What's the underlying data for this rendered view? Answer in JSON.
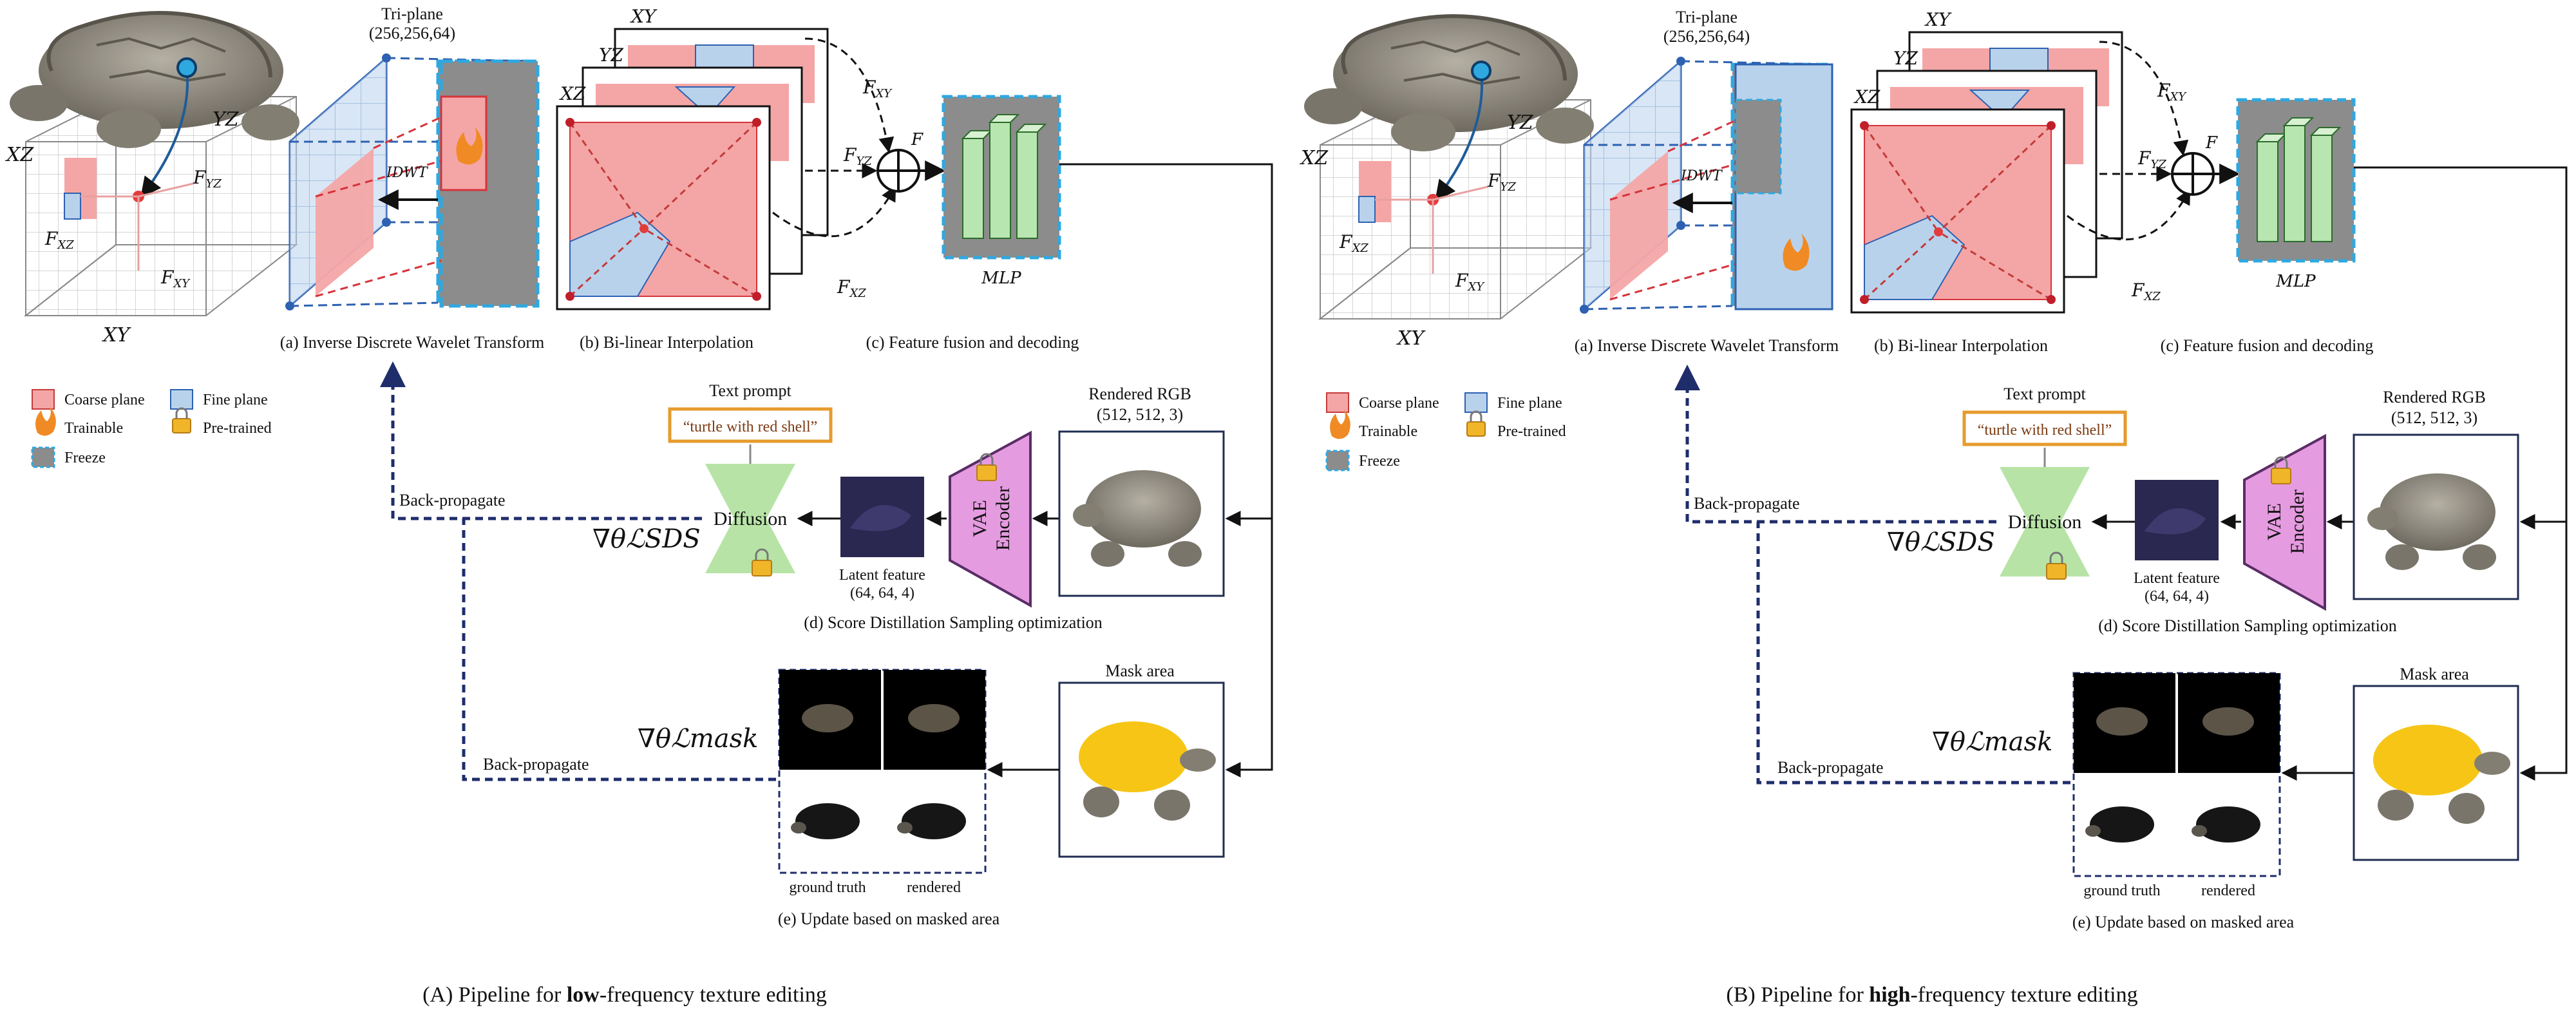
{
  "panels": [
    {
      "id": "A",
      "turtle_labels": {
        "xz": "XZ",
        "yz": "YZ",
        "xy": "XY",
        "fxz": "F",
        "fxz_sub": "XZ",
        "fyz": "F",
        "fyz_sub": "YZ",
        "fxy": "F",
        "fxy_sub": "XY"
      },
      "triplane": {
        "title": "Tri-plane",
        "dims": "(256,256,64)",
        "idwt": "IDWT",
        "highlight": "low"
      },
      "bilinear": {
        "xy": "XY",
        "yz": "YZ",
        "xz": "XZ"
      },
      "fusion": {
        "f": "F",
        "fxy": "F",
        "fxy_sub": "XY",
        "fyz": "F",
        "fyz_sub": "YZ",
        "fxz": "F",
        "fxz_sub": "XZ",
        "mlp": "MLP"
      },
      "captions": {
        "a": "(a) Inverse Discrete Wavelet Transform",
        "b": "(b) Bi-linear Interpolation",
        "c": "(c) Feature fusion and decoding",
        "d": "(d) Score Distillation Sampling optimization",
        "e": "(e) Update based on masked area"
      },
      "legend": {
        "coarse": "Coarse plane",
        "fine": "Fine plane",
        "trainable": "Trainable",
        "pretrained": "Pre-trained",
        "freeze": "Freeze"
      },
      "sds": {
        "text_prompt_title": "Text prompt",
        "prompt": "“turtle with red shell”",
        "diffusion": "Diffusion",
        "latent_title": "Latent feature",
        "latent_dims": "(64, 64, 4)",
        "vae_line1": "VAE",
        "vae_line2": "Encoder",
        "rendered_title": "Rendered RGB",
        "rendered_dims": "(512, 512, 3)",
        "backprop": "Back-propagate",
        "loss": "∇θℒSDS"
      },
      "mask": {
        "title": "Mask area",
        "ground_truth": "ground truth",
        "rendered": "rendered",
        "backprop": "Back-propagate",
        "loss": "∇θℒmask"
      },
      "title_pre": "(A) Pipeline for ",
      "title_bold": "low",
      "title_post": "-frequency texture editing"
    },
    {
      "id": "B",
      "turtle_labels": {
        "xz": "XZ",
        "yz": "YZ",
        "xy": "XY",
        "fxz": "F",
        "fxz_sub": "XZ",
        "fyz": "F",
        "fyz_sub": "YZ",
        "fxy": "F",
        "fxy_sub": "XY"
      },
      "triplane": {
        "title": "Tri-plane",
        "dims": "(256,256,64)",
        "idwt": "IDWT",
        "highlight": "high"
      },
      "bilinear": {
        "xy": "XY",
        "yz": "YZ",
        "xz": "XZ"
      },
      "fusion": {
        "f": "F",
        "fxy": "F",
        "fxy_sub": "XY",
        "fyz": "F",
        "fyz_sub": "YZ",
        "fxz": "F",
        "fxz_sub": "XZ",
        "mlp": "MLP"
      },
      "captions": {
        "a": "(a) Inverse Discrete Wavelet Transform",
        "b": "(b) Bi-linear Interpolation",
        "c": "(c) Feature fusion and decoding",
        "d": "(d) Score Distillation Sampling optimization",
        "e": "(e) Update based on masked area"
      },
      "legend": {
        "coarse": "Coarse plane",
        "fine": "Fine plane",
        "trainable": "Trainable",
        "pretrained": "Pre-trained",
        "freeze": "Freeze"
      },
      "sds": {
        "text_prompt_title": "Text prompt",
        "prompt": "“turtle with red shell”",
        "diffusion": "Diffusion",
        "latent_title": "Latent feature",
        "latent_dims": "(64, 64, 4)",
        "vae_line1": "VAE",
        "vae_line2": "Encoder",
        "rendered_title": "Rendered RGB",
        "rendered_dims": "(512, 512, 3)",
        "backprop": "Back-propagate",
        "loss": "∇θℒSDS"
      },
      "mask": {
        "title": "Mask area",
        "ground_truth": "ground truth",
        "rendered": "rendered",
        "backprop": "Back-propagate",
        "loss": "∇θℒmask"
      },
      "title_pre": "(B) Pipeline for ",
      "title_bold": "high",
      "title_post": "-frequency texture editing"
    }
  ],
  "colors": {
    "coarse": "#f4a6a6",
    "fine": "#b9d2ec",
    "freeze": "#8c8c8c",
    "mlp": "#b8e6b0",
    "diffusion": "#b7e4a6",
    "vae": "#e59be0",
    "prompt_border": "#e69b2c",
    "backprop": "#1f2d6b",
    "mask_yellow": "#f6c516",
    "latent": "#2a2750"
  }
}
